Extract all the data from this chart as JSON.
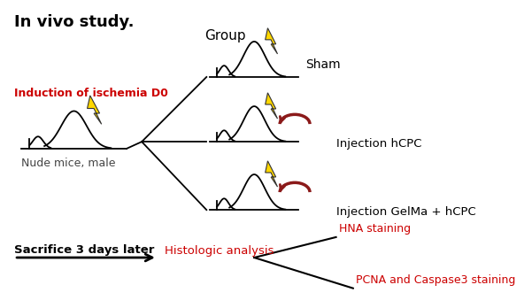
{
  "title": "In vivo study.",
  "title_fontsize": 13,
  "title_weight": "bold",
  "bg_color": "#ffffff",
  "red_color": "#cc0000",
  "dark_red_color": "#8b1a1a",
  "black_color": "#000000",
  "gold_color": "#FFD700",
  "group_label": "Group",
  "ischemia_label": "Induction of ischemia D0",
  "nude_mice_label": "Nude mice, male",
  "sham_label": "Sham",
  "injection_hcpc_label": "Injection hCPC",
  "injection_gelma_label": "Injection GelMa + hCPC",
  "sacrifice_label": "Sacrifice 3 days later",
  "histologic_label": "Histologic analysis",
  "hna_label": "HNA staining",
  "pcna_label": "PCNA and Caspase3 staining"
}
